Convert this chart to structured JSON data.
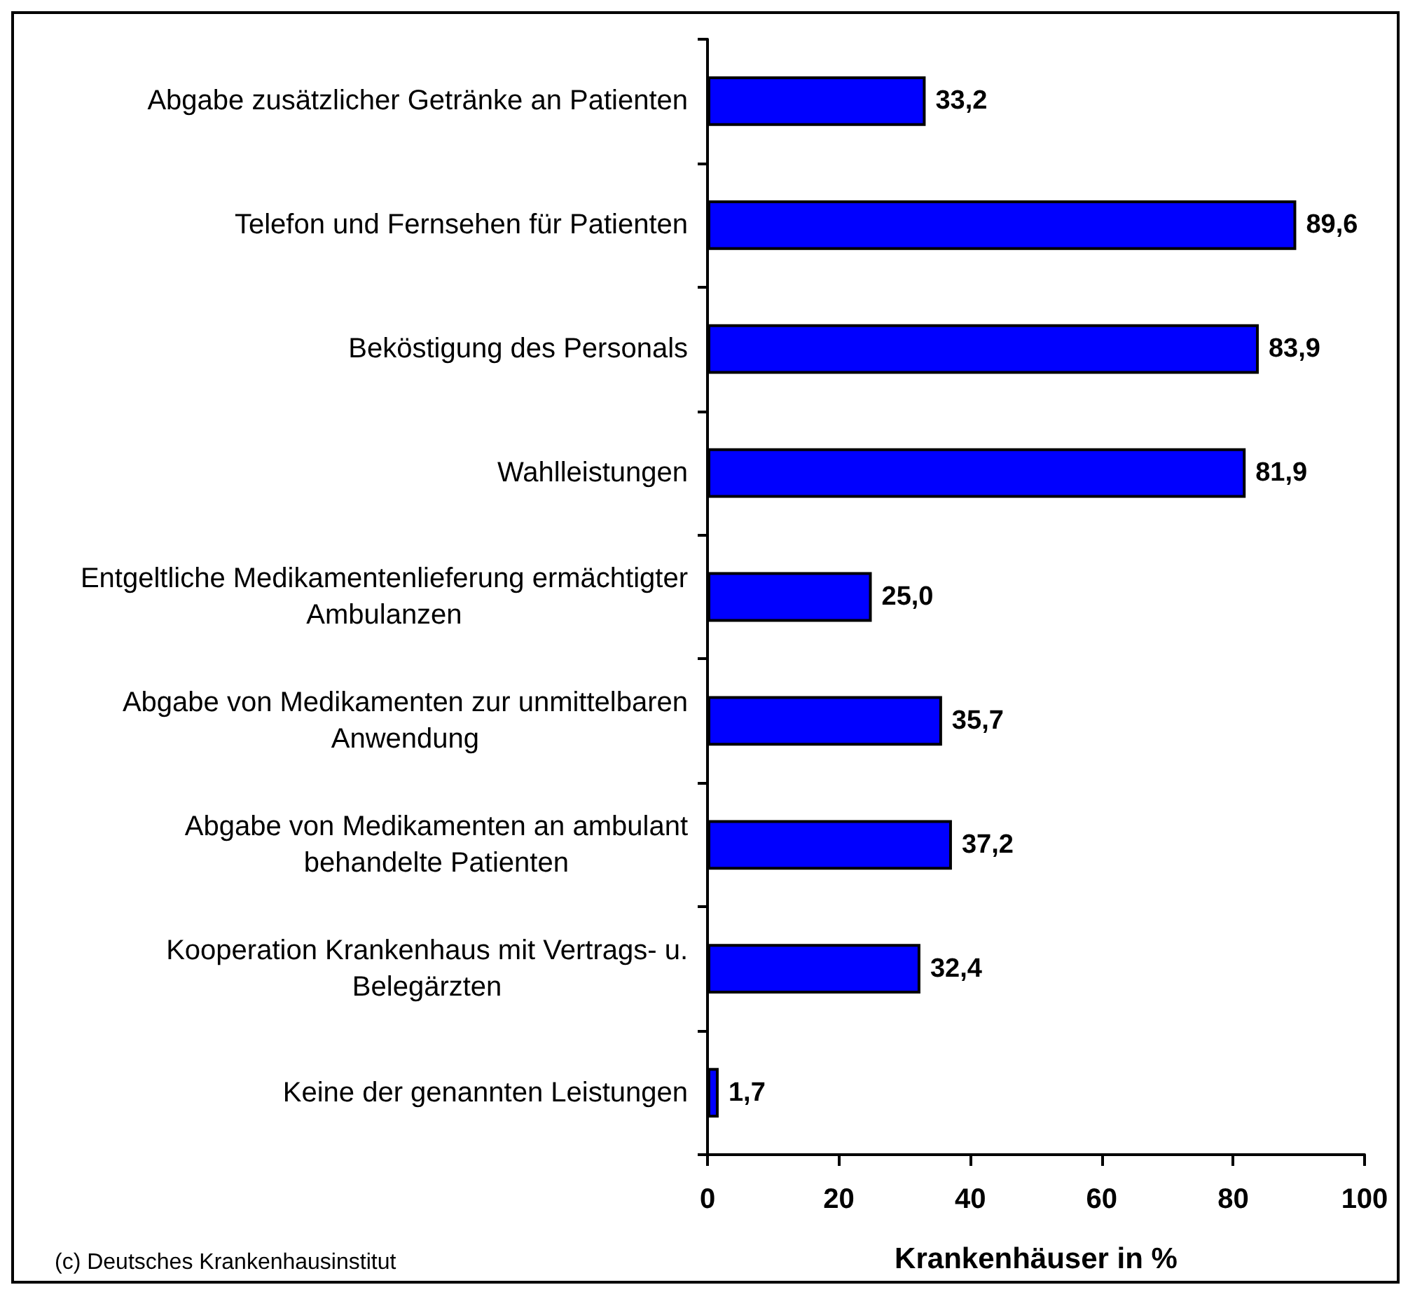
{
  "chart_data": {
    "type": "bar",
    "orientation": "horizontal",
    "categories": [
      "Abgabe zusätzlicher Getränke an Patienten",
      "Telefon und Fernsehen für Patienten",
      "Beköstigung des Personals",
      "Wahlleistungen",
      "Entgeltliche Medikamentenlieferung ermächtigter Ambulanzen",
      "Abgabe von Medikamenten zur unmittelbaren Anwendung",
      "Abgabe von Medikamenten an ambulant behandelte Patienten",
      "Kooperation Krankenhaus mit Vertrags- u. Belegärzten",
      "Keine der genannten Leistungen"
    ],
    "values": [
      33.2,
      89.6,
      83.9,
      81.9,
      25.0,
      35.7,
      37.2,
      32.4,
      1.7
    ],
    "color": "#0000ff",
    "value_labels": [
      "33,2",
      "89,6",
      "83,9",
      "81,9",
      "25,0",
      "35,7",
      "37,2",
      "32,4",
      "1,7"
    ],
    "xlabel": "Krankenhäuser in %",
    "xlim": [
      0,
      100
    ],
    "xticks": [
      0,
      20,
      40,
      60,
      80,
      100
    ],
    "annotations": [
      "(c) Deutsches Krankenhausinstitut"
    ]
  }
}
